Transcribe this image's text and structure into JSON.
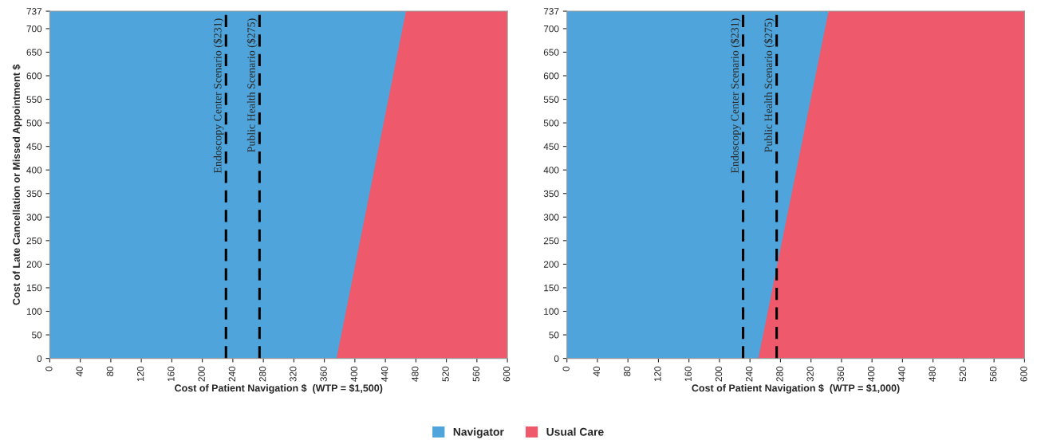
{
  "chart_data": [
    {
      "type": "area",
      "x": [
        0,
        376,
        467,
        600
      ],
      "series": [
        {
          "name": "Navigator",
          "color": "#4fa5db",
          "values": [
            737,
            737,
            737,
            null
          ]
        },
        {
          "name": "Usual Care",
          "color": "#ee5a6b",
          "values": [
            0,
            0,
            737,
            737
          ]
        }
      ],
      "xlabel": "Cost of Patient Navigation $  (WTP = $1,500)",
      "ylabel": "Cost of Late Cancellation or Missed Appointment $",
      "xlim": [
        0,
        600
      ],
      "xticks": [
        0,
        40,
        80,
        120,
        160,
        200,
        240,
        280,
        320,
        360,
        400,
        440,
        480,
        520,
        560,
        600
      ],
      "ylim": [
        0,
        737
      ],
      "yticks": [
        0,
        50,
        100,
        150,
        200,
        250,
        300,
        350,
        400,
        450,
        500,
        550,
        600,
        650,
        700,
        737
      ],
      "ref_lines": [
        {
          "axis": "x",
          "value": 231,
          "label": "Endoscopy Center Scenario ($231)",
          "color": "#000000",
          "line_style": "dashed"
        },
        {
          "axis": "x",
          "value": 275,
          "label": "Public Health Scenario ($275)",
          "color": "#000000",
          "line_style": "dashed"
        }
      ],
      "legend": "bottom"
    },
    {
      "type": "area",
      "x": [
        0,
        251,
        343,
        600
      ],
      "series": [
        {
          "color": "#4fa5db",
          "values": [
            737,
            737,
            737,
            null
          ]
        },
        {
          "color": "#ee5a6b",
          "values": [
            0,
            0,
            737,
            737
          ]
        }
      ],
      "xlabel": "Cost of Patient Navigation $  (WTP = $1,000)",
      "xlim": [
        0,
        600
      ],
      "xticks": [
        0,
        40,
        80,
        120,
        160,
        200,
        240,
        280,
        320,
        360,
        400,
        440,
        480,
        520,
        560,
        600
      ],
      "ylim": [
        0,
        737
      ],
      "yticks": [
        0,
        50,
        100,
        150,
        200,
        250,
        300,
        350,
        400,
        450,
        500,
        550,
        600,
        650,
        700,
        737
      ],
      "ref_lines": [
        {
          "axis": "x",
          "value": 231,
          "label": "Endoscopy Center Scenario ($231)",
          "color": "#000000",
          "line_style": "dashed"
        },
        {
          "axis": "x",
          "value": 275,
          "label": "Public Health Scenario ($275)",
          "color": "#000000",
          "line_style": "dashed"
        }
      ]
    }
  ]
}
